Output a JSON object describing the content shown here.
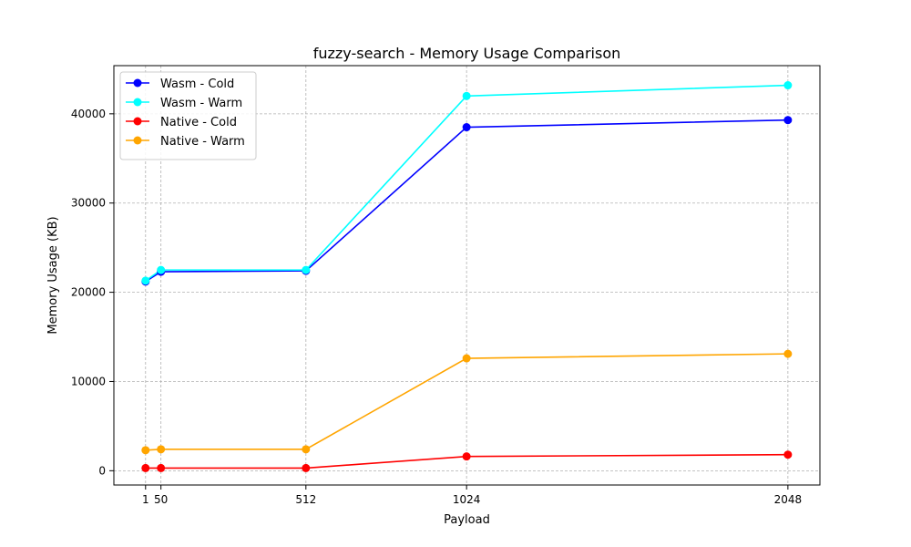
{
  "chart_data": {
    "type": "line",
    "title": "fuzzy-search - Memory Usage Comparison",
    "xlabel": "Payload",
    "ylabel": "Memory Usage (KB)",
    "x": [
      1,
      50,
      512,
      1024,
      2048
    ],
    "x_ticks": [
      1,
      50,
      512,
      1024,
      2048
    ],
    "y_ticks": [
      0,
      10000,
      20000,
      30000,
      40000
    ],
    "xlim": [
      -100,
      2150
    ],
    "ylim": [
      -1600,
      45400
    ],
    "grid": true,
    "legend_position": "top-left",
    "series": [
      {
        "name": "Wasm - Cold",
        "color": "#0000ff",
        "values": [
          21200,
          22300,
          22400,
          38500,
          39300
        ]
      },
      {
        "name": "Wasm - Warm",
        "color": "#00ffff",
        "values": [
          21300,
          22500,
          22500,
          42000,
          43200
        ]
      },
      {
        "name": "Native - Cold",
        "color": "#ff0000",
        "values": [
          300,
          300,
          300,
          1600,
          1800
        ]
      },
      {
        "name": "Native - Warm",
        "color": "#ffa500",
        "values": [
          2300,
          2400,
          2400,
          12600,
          13100
        ]
      }
    ]
  }
}
